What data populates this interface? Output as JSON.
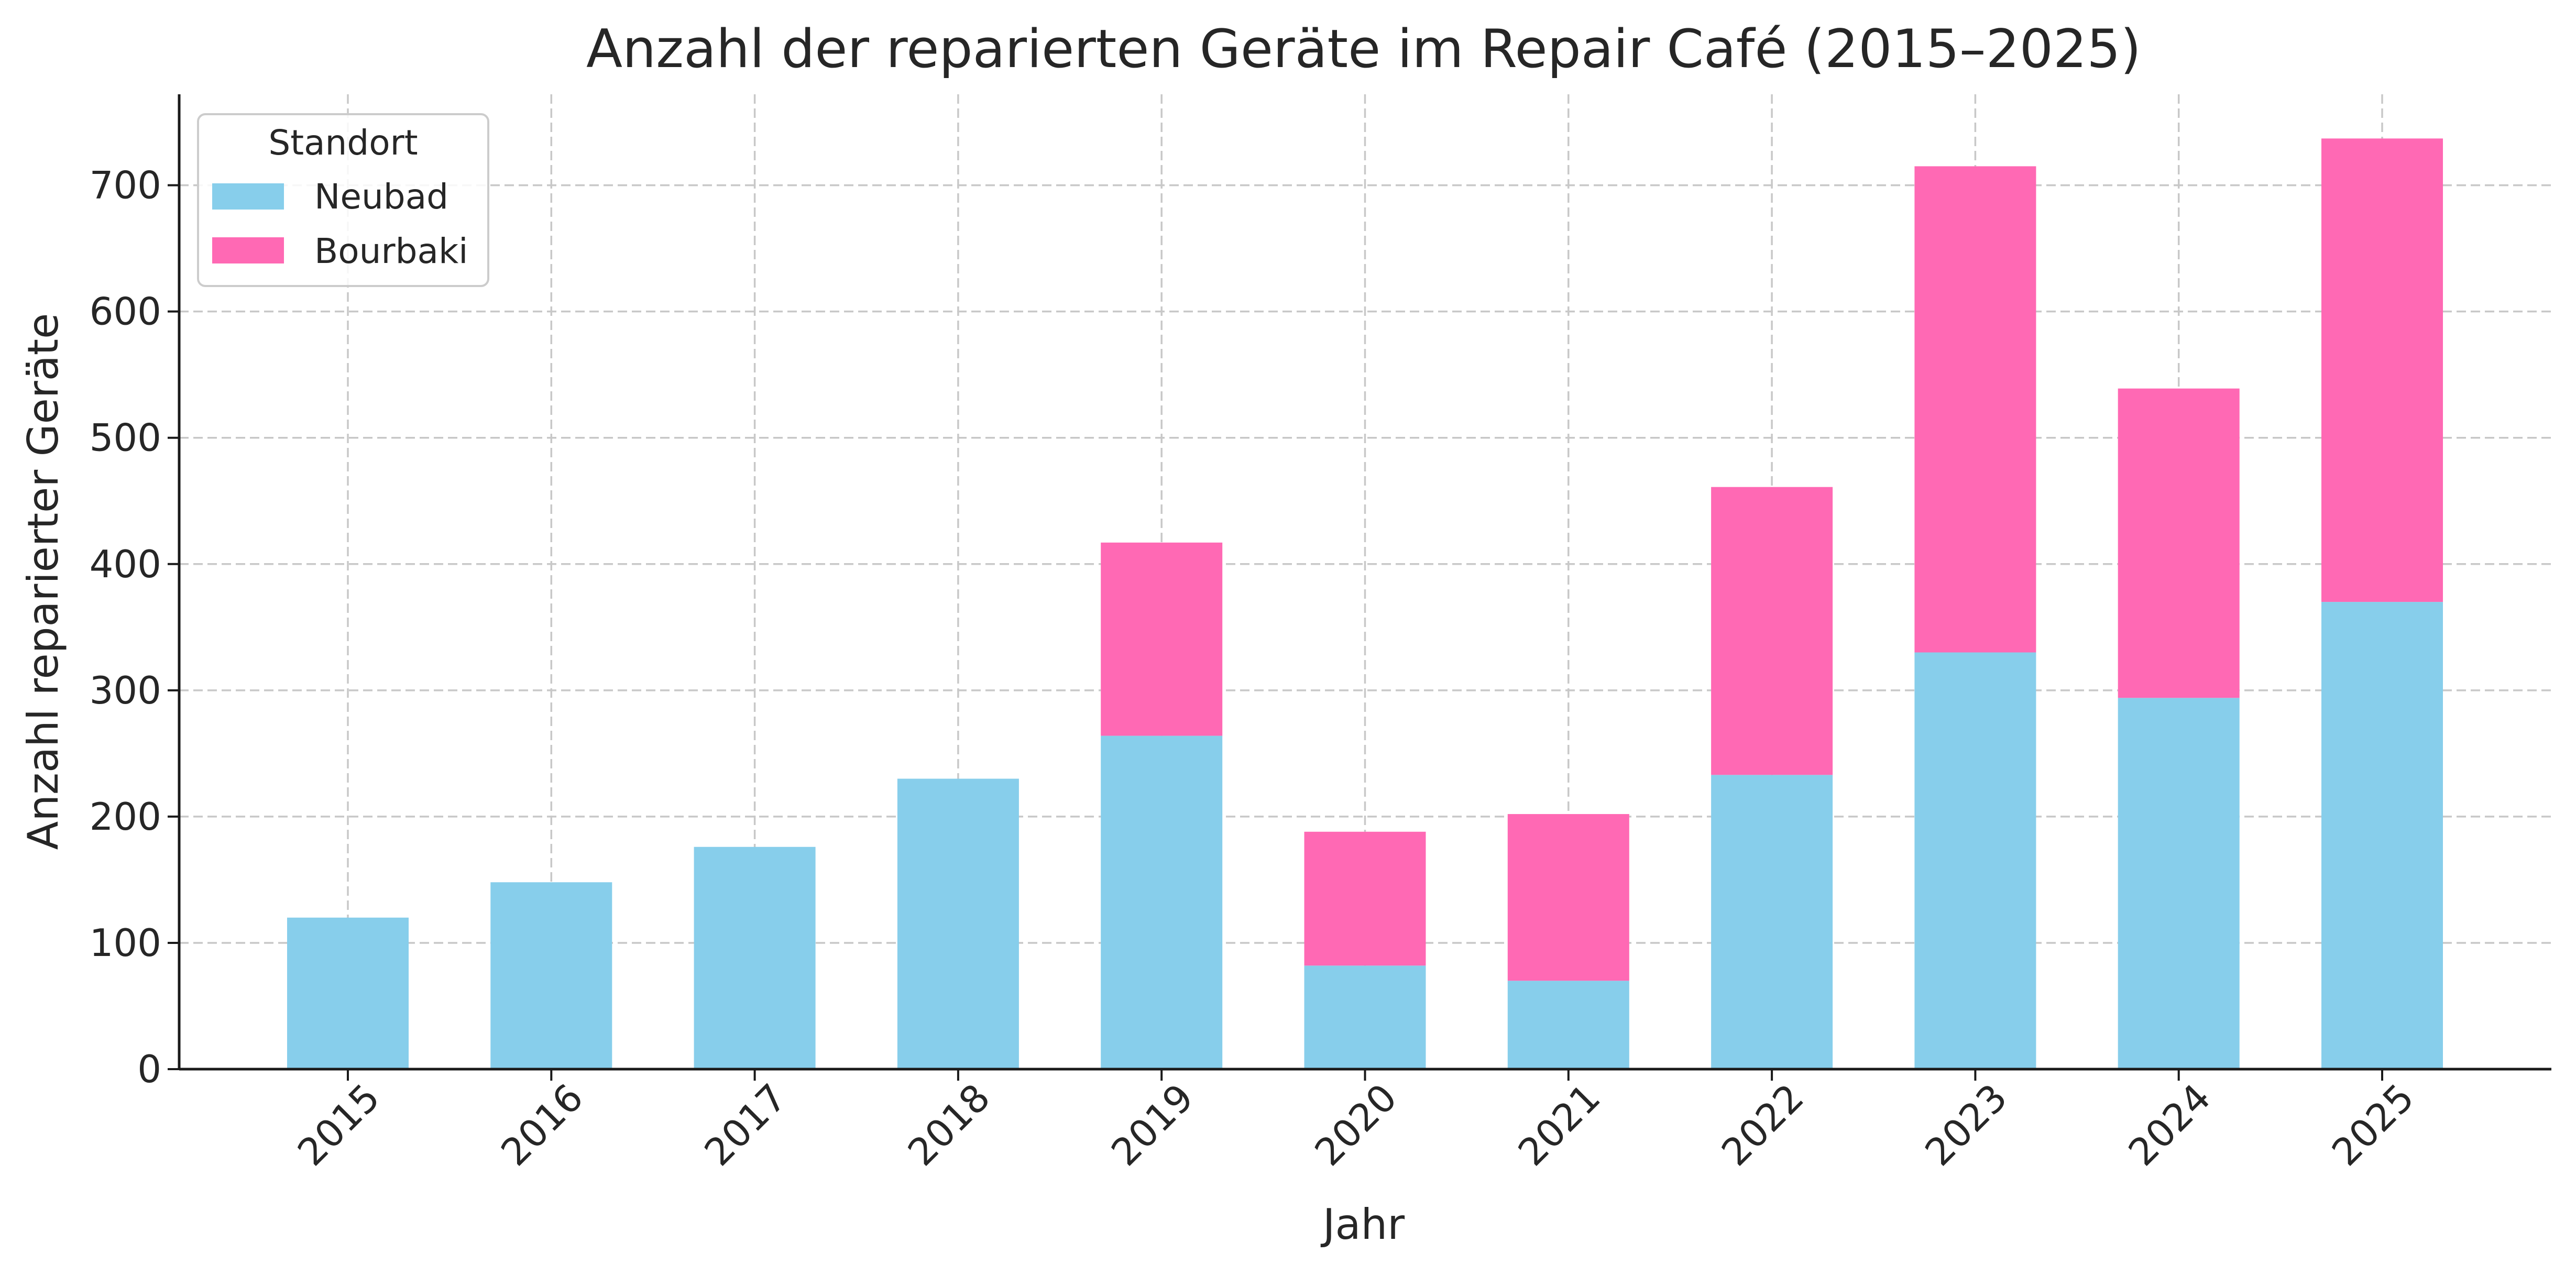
{
  "chart_data": {
    "type": "bar",
    "stacked": true,
    "title": "Anzahl der reparierten Geräte im Repair Café (2015–2025)",
    "xlabel": "Jahr",
    "ylabel": "Anzahl reparierter Geräte",
    "categories": [
      "2015",
      "2016",
      "2017",
      "2018",
      "2019",
      "2020",
      "2021",
      "2022",
      "2023",
      "2024",
      "2025"
    ],
    "series": [
      {
        "name": "Neubad",
        "color": "#87CEEB",
        "values": [
          120,
          148,
          176,
          230,
          264,
          82,
          70,
          233,
          330,
          294,
          370
        ]
      },
      {
        "name": "Bourbaki",
        "color": "#FF69B4",
        "values": [
          0,
          0,
          0,
          0,
          153,
          106,
          132,
          228,
          385,
          245,
          367
        ]
      }
    ],
    "ylim": [
      0,
      772
    ],
    "yticks": [
      0,
      100,
      200,
      300,
      400,
      500,
      600,
      700
    ],
    "grid": true,
    "legend": {
      "title": "Standort",
      "position": "top-left"
    }
  }
}
